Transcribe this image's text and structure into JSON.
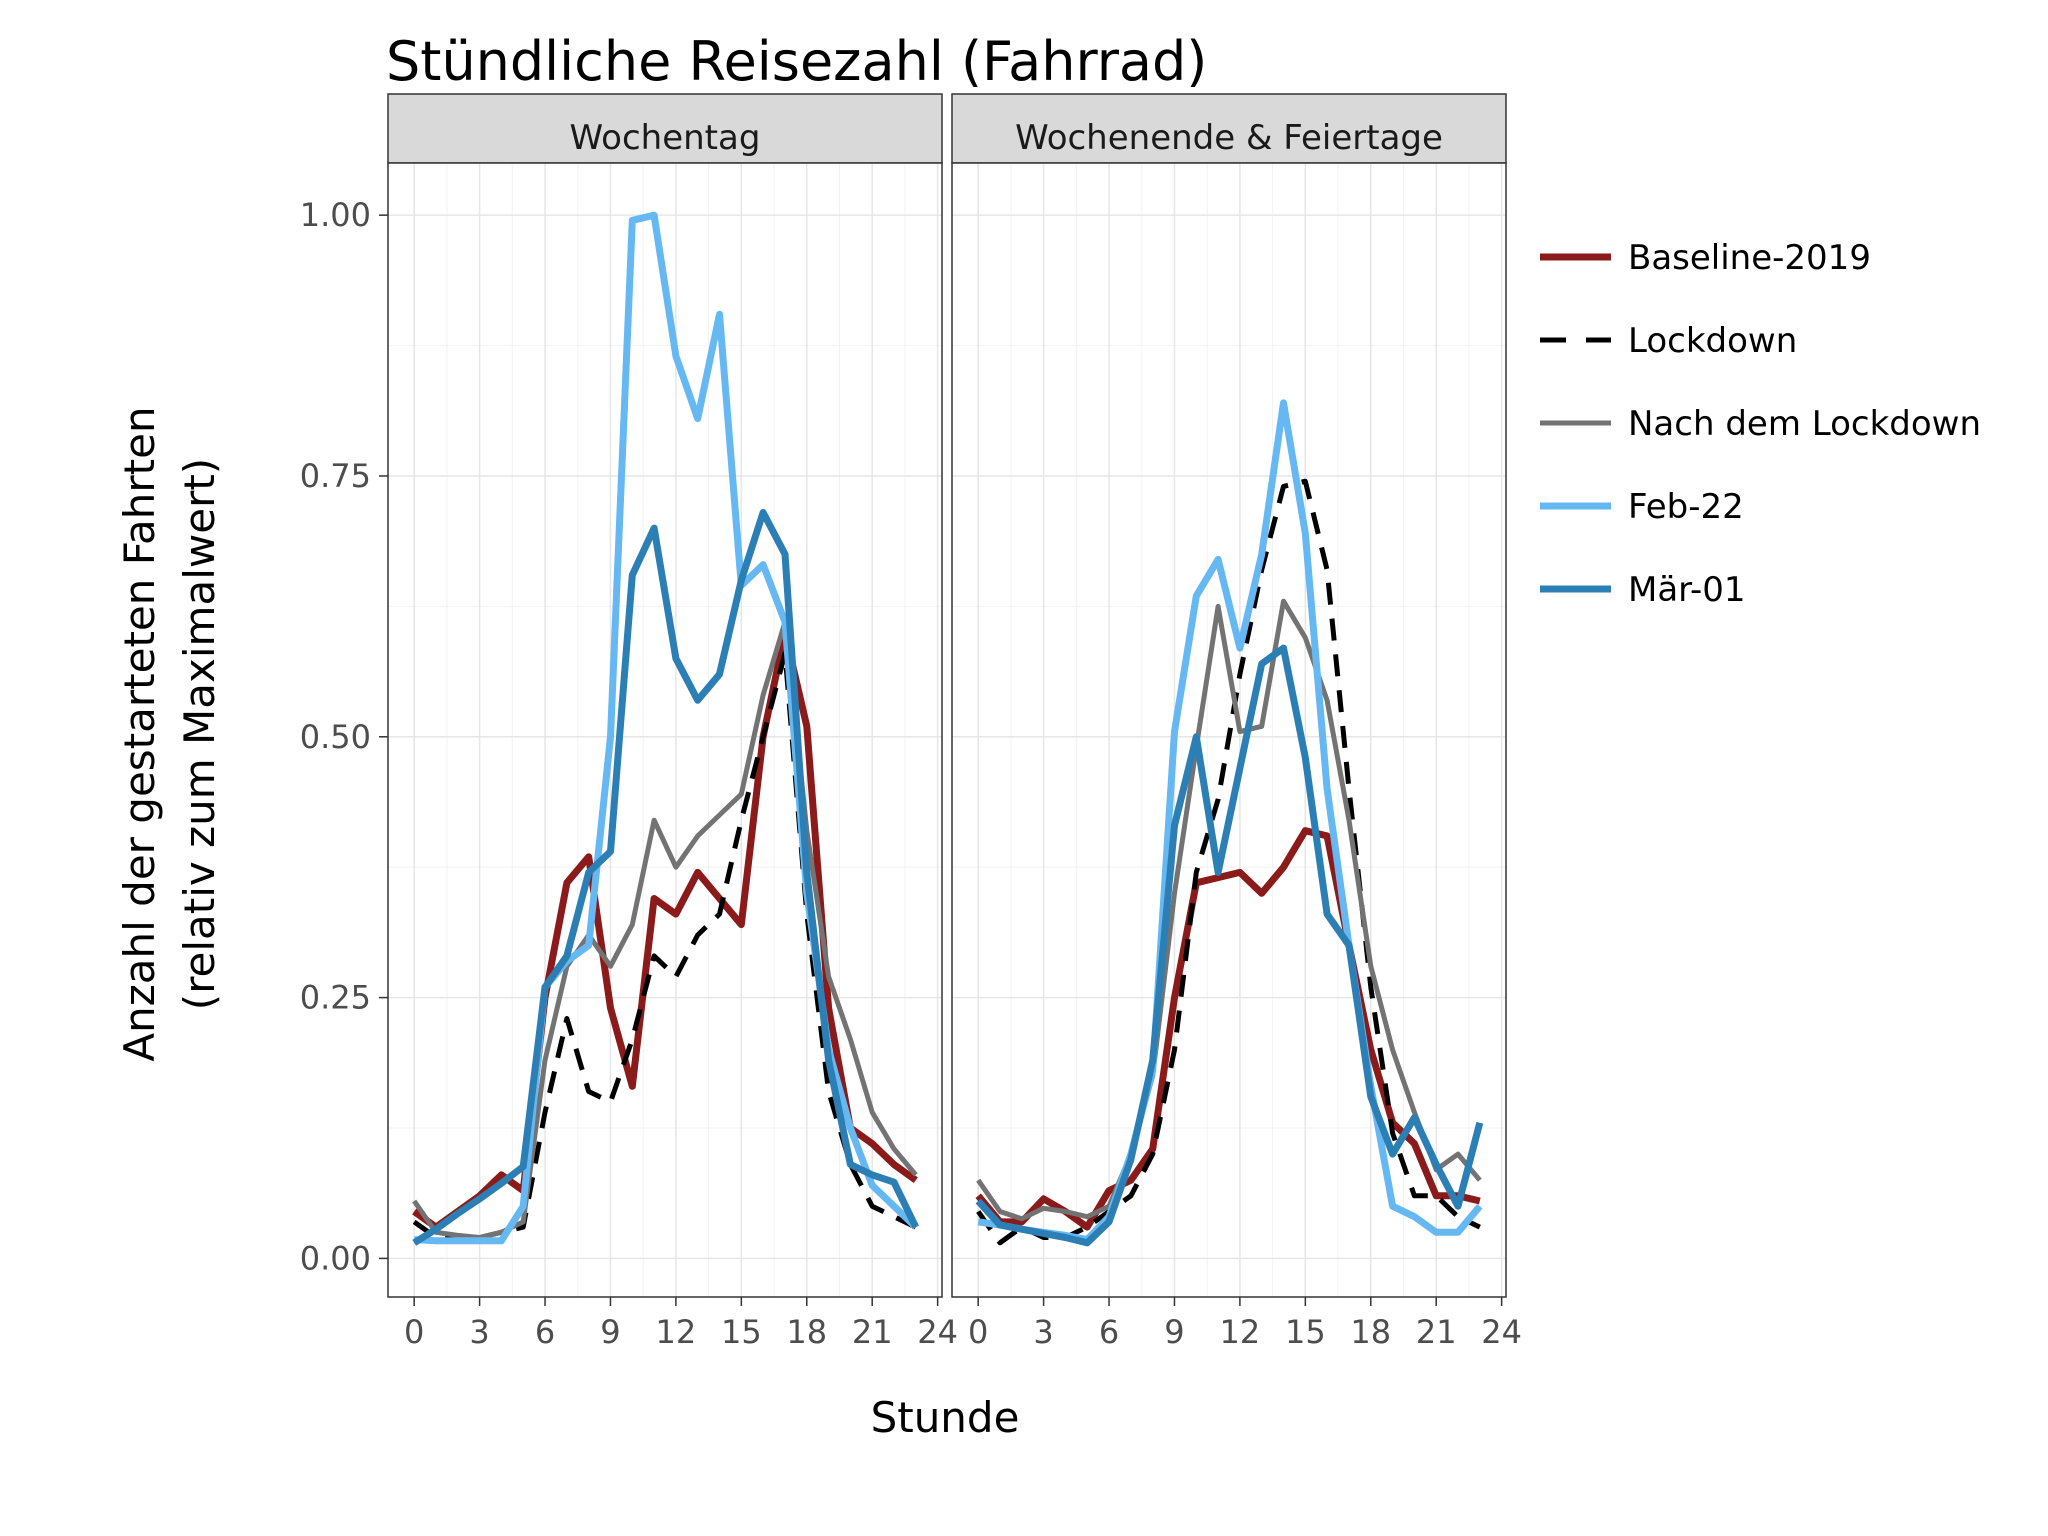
{
  "chart_data": {
    "type": "line",
    "title": "Stündliche Reisezahl (Fahrrad)",
    "xlabel": "Stunde",
    "ylabel_line1": "Anzahl der gestarteten Fahrten",
    "ylabel_line2": "(relativ zum Maximalwert)",
    "xlim": [
      -1.2,
      24.2
    ],
    "ylim": [
      -0.037,
      1.05
    ],
    "x_ticks": [
      0,
      3,
      6,
      9,
      12,
      15,
      18,
      21,
      24
    ],
    "x_tick_labels": [
      "0",
      "3",
      "6",
      "9",
      "12",
      "15",
      "18",
      "21",
      "24"
    ],
    "y_ticks": [
      0,
      0.25,
      0.5,
      0.75,
      1.0
    ],
    "y_tick_labels": [
      "0.00",
      "0.25",
      "0.50",
      "0.75",
      "1.00"
    ],
    "grid": true,
    "legend_position": "right",
    "panels": [
      {
        "name": "Wochentag",
        "x": [
          0,
          1,
          2,
          3,
          4,
          5,
          6,
          7,
          8,
          9,
          10,
          11,
          12,
          13,
          14,
          15,
          16,
          17,
          18,
          19,
          20,
          21,
          22,
          23
        ],
        "series": [
          {
            "name": "Baseline-2019",
            "values": [
              0.045,
              0.03,
              0.045,
              0.06,
              0.08,
              0.065,
              0.25,
              0.36,
              0.385,
              0.24,
              0.165,
              0.345,
              0.33,
              0.37,
              0.345,
              0.32,
              0.5,
              0.6,
              0.51,
              0.24,
              0.125,
              0.11,
              0.09,
              0.075
            ]
          },
          {
            "name": "Lockdown",
            "values": [
              0.035,
              0.02,
              0.02,
              0.02,
              0.025,
              0.03,
              0.14,
              0.23,
              0.16,
              0.15,
              0.21,
              0.29,
              0.27,
              0.31,
              0.33,
              0.42,
              0.5,
              0.58,
              0.33,
              0.16,
              0.09,
              0.05,
              0.04,
              0.03
            ]
          },
          {
            "name": "Nach dem Lockdown",
            "values": [
              0.055,
              0.025,
              0.022,
              0.02,
              0.025,
              0.035,
              0.19,
              0.28,
              0.31,
              0.28,
              0.32,
              0.42,
              0.375,
              0.405,
              0.425,
              0.445,
              0.54,
              0.61,
              0.41,
              0.27,
              0.21,
              0.14,
              0.105,
              0.08
            ]
          },
          {
            "name": "Feb-22",
            "values": [
              0.018,
              0.017,
              0.017,
              0.017,
              0.017,
              0.05,
              0.26,
              0.285,
              0.3,
              0.5,
              0.995,
              1.0,
              0.865,
              0.805,
              0.905,
              0.645,
              0.665,
              0.61,
              0.35,
              0.2,
              0.125,
              0.07,
              0.05,
              0.03
            ]
          },
          {
            "name": "Mär-01",
            "values": [
              0.015,
              0.028,
              0.043,
              0.057,
              0.072,
              0.088,
              0.26,
              0.29,
              0.37,
              0.39,
              0.655,
              0.7,
              0.575,
              0.535,
              0.56,
              0.65,
              0.715,
              0.675,
              0.37,
              0.19,
              0.09,
              0.08,
              0.073,
              0.03
            ]
          }
        ]
      },
      {
        "name": "Wochenende & Feiertage",
        "x": [
          0,
          1,
          2,
          3,
          4,
          5,
          6,
          7,
          8,
          9,
          10,
          11,
          12,
          13,
          14,
          15,
          16,
          17,
          18,
          19,
          20,
          21,
          22,
          23
        ],
        "series": [
          {
            "name": "Baseline-2019",
            "values": [
              0.06,
              0.035,
              0.035,
              0.057,
              0.045,
              0.03,
              0.065,
              0.075,
              0.105,
              0.25,
              0.36,
              0.365,
              0.37,
              0.35,
              0.375,
              0.41,
              0.405,
              0.3,
              0.2,
              0.13,
              0.11,
              0.06,
              0.06,
              0.055
            ]
          },
          {
            "name": "Lockdown",
            "values": [
              0.045,
              0.015,
              0.03,
              0.02,
              0.02,
              0.03,
              0.045,
              0.06,
              0.1,
              0.2,
              0.37,
              0.44,
              0.56,
              0.66,
              0.74,
              0.745,
              0.66,
              0.45,
              0.26,
              0.12,
              0.06,
              0.06,
              0.04,
              0.03
            ]
          },
          {
            "name": "Nach dem Lockdown",
            "values": [
              0.075,
              0.045,
              0.038,
              0.048,
              0.045,
              0.04,
              0.05,
              0.1,
              0.175,
              0.35,
              0.49,
              0.625,
              0.505,
              0.51,
              0.63,
              0.595,
              0.535,
              0.42,
              0.28,
              0.2,
              0.14,
              0.085,
              0.1,
              0.075
            ]
          },
          {
            "name": "Feb-22",
            "values": [
              0.035,
              0.032,
              0.028,
              0.025,
              0.022,
              0.018,
              0.04,
              0.1,
              0.18,
              0.505,
              0.635,
              0.67,
              0.585,
              0.675,
              0.82,
              0.695,
              0.45,
              0.3,
              0.165,
              0.05,
              0.04,
              0.025,
              0.025,
              0.05
            ]
          },
          {
            "name": "Mär-01",
            "values": [
              0.055,
              0.032,
              0.028,
              0.024,
              0.02,
              0.015,
              0.035,
              0.095,
              0.19,
              0.415,
              0.5,
              0.37,
              0.47,
              0.57,
              0.585,
              0.48,
              0.33,
              0.3,
              0.155,
              0.1,
              0.135,
              0.09,
              0.05,
              0.13
            ]
          }
        ]
      }
    ],
    "series_styles": [
      {
        "name": "Baseline-2019",
        "color": "#8B1A1A",
        "width": 7,
        "dash": ""
      },
      {
        "name": "Lockdown",
        "color": "#000000",
        "width": 5,
        "dash": "22 14"
      },
      {
        "name": "Nach dem Lockdown",
        "color": "#737373",
        "width": 5,
        "dash": ""
      },
      {
        "name": "Feb-22",
        "color": "#66B8F2",
        "width": 7,
        "dash": ""
      },
      {
        "name": "Mär-01",
        "color": "#2B7FB5",
        "width": 7,
        "dash": ""
      }
    ],
    "legend_entries": [
      "Baseline-2019",
      "Lockdown",
      "Nach dem Lockdown",
      "Feb-22",
      "Mär-01"
    ]
  }
}
